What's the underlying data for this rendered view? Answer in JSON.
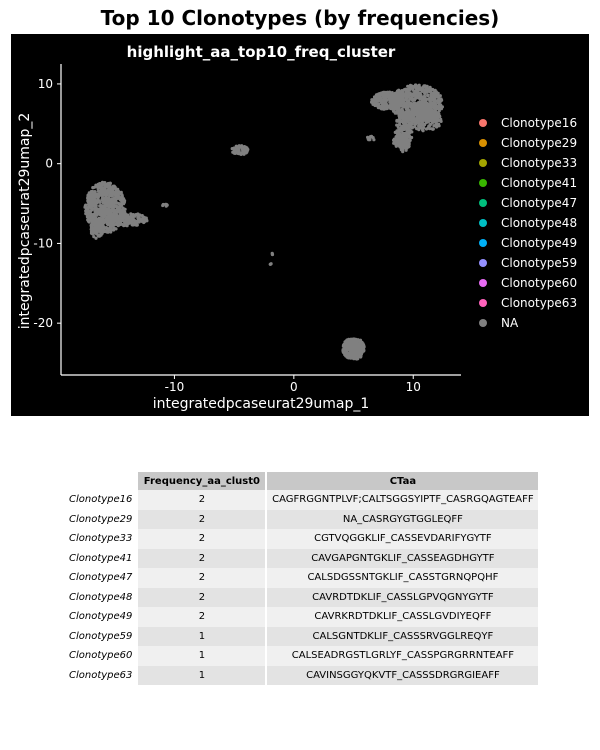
{
  "page_title": "Top 10 Clonotypes (by frequencies)",
  "chart_data": {
    "type": "scatter",
    "title": "highlight_aa_top10_freq_cluster",
    "xlabel": "integratedpcaseurat29umap_1",
    "ylabel": "integratedpcaseurat29umap_2",
    "xlim": [
      -19.5,
      14
    ],
    "ylim": [
      -26.5,
      12.5
    ],
    "xticks": [
      -10,
      0,
      10
    ],
    "yticks": [
      -20,
      -10,
      0,
      10
    ],
    "legend_position": "right",
    "background": "#000000",
    "legend": [
      {
        "label": "Clonotype16",
        "color": "#F8766D"
      },
      {
        "label": "Clonotype29",
        "color": "#D89000"
      },
      {
        "label": "Clonotype33",
        "color": "#A3A500"
      },
      {
        "label": "Clonotype41",
        "color": "#39B600"
      },
      {
        "label": "Clonotype47",
        "color": "#00BF7D"
      },
      {
        "label": "Clonotype48",
        "color": "#00BFC4"
      },
      {
        "label": "Clonotype49",
        "color": "#00B0F6"
      },
      {
        "label": "Clonotype59",
        "color": "#9590FF"
      },
      {
        "label": "Clonotype60",
        "color": "#E76BF3"
      },
      {
        "label": "Clonotype63",
        "color": "#FF62BC"
      },
      {
        "label": "NA",
        "color": "#808080"
      }
    ],
    "clusters": [
      {
        "cx": -15.8,
        "cy": -5.5,
        "rx": 1.7,
        "ry": 3.2,
        "n": 700
      },
      {
        "cx": -13.9,
        "cy": -7.0,
        "rx": 1.7,
        "ry": 0.8,
        "n": 160
      },
      {
        "cx": -16.5,
        "cy": -8.3,
        "rx": 0.5,
        "ry": 1.1,
        "n": 60
      },
      {
        "cx": -4.5,
        "cy": 1.7,
        "rx": 0.7,
        "ry": 0.6,
        "n": 70
      },
      {
        "cx": -10.8,
        "cy": -5.2,
        "rx": 0.25,
        "ry": 0.15,
        "n": 6
      },
      {
        "cx": -1.8,
        "cy": -11.3,
        "rx": 0.15,
        "ry": 0.15,
        "n": 3
      },
      {
        "cx": -1.9,
        "cy": -12.6,
        "rx": 0.15,
        "ry": 0.2,
        "n": 3
      },
      {
        "cx": 10.3,
        "cy": 7.6,
        "rx": 2.2,
        "ry": 2.3,
        "n": 550
      },
      {
        "cx": 7.8,
        "cy": 7.9,
        "rx": 1.3,
        "ry": 1.1,
        "n": 220
      },
      {
        "cx": 10.9,
        "cy": 5.5,
        "rx": 1.5,
        "ry": 1.4,
        "n": 200
      },
      {
        "cx": 9.2,
        "cy": 4.0,
        "rx": 0.7,
        "ry": 2.5,
        "n": 200
      },
      {
        "cx": 9.0,
        "cy": 2.8,
        "rx": 0.7,
        "ry": 0.8,
        "n": 90
      },
      {
        "cx": 6.5,
        "cy": 3.2,
        "rx": 0.4,
        "ry": 0.25,
        "n": 12
      },
      {
        "cx": 5.0,
        "cy": -23.2,
        "rx": 0.9,
        "ry": 1.4,
        "n": 260
      }
    ]
  },
  "table": {
    "columns": [
      "Frequency_aa_clust0",
      "CTaa"
    ],
    "rows": [
      {
        "name": "Clonotype16",
        "freq": "2",
        "ctaa": "CAGFRGGNTPLVF;CALTSGGSYIPTF_CASRGQAGTEAFF"
      },
      {
        "name": "Clonotype29",
        "freq": "2",
        "ctaa": "NA_CASRGYGTGGLEQFF"
      },
      {
        "name": "Clonotype33",
        "freq": "2",
        "ctaa": "CGTVQGGKLIF_CASSEVDARIFYGYTF"
      },
      {
        "name": "Clonotype41",
        "freq": "2",
        "ctaa": "CAVGAPGNTGKLIF_CASSEAGDHGYTF"
      },
      {
        "name": "Clonotype47",
        "freq": "2",
        "ctaa": "CALSDGSSNTGKLIF_CASSTGRNQPQHF"
      },
      {
        "name": "Clonotype48",
        "freq": "2",
        "ctaa": "CAVRDTDKLIF_CASSLGPVQGNYGYTF"
      },
      {
        "name": "Clonotype49",
        "freq": "2",
        "ctaa": "CAVRKRDTDKLIF_CASSLGVDIYEQFF"
      },
      {
        "name": "Clonotype59",
        "freq": "1",
        "ctaa": "CALSGNTDKLIF_CASSSRVGGLREQYF"
      },
      {
        "name": "Clonotype60",
        "freq": "1",
        "ctaa": "CALSEADRGSTLGRLYF_CASSPGRGRRNTEAFF"
      },
      {
        "name": "Clonotype63",
        "freq": "1",
        "ctaa": "CAVINSGGYQKVTF_CASSSDRGRGIEAFF"
      }
    ]
  }
}
